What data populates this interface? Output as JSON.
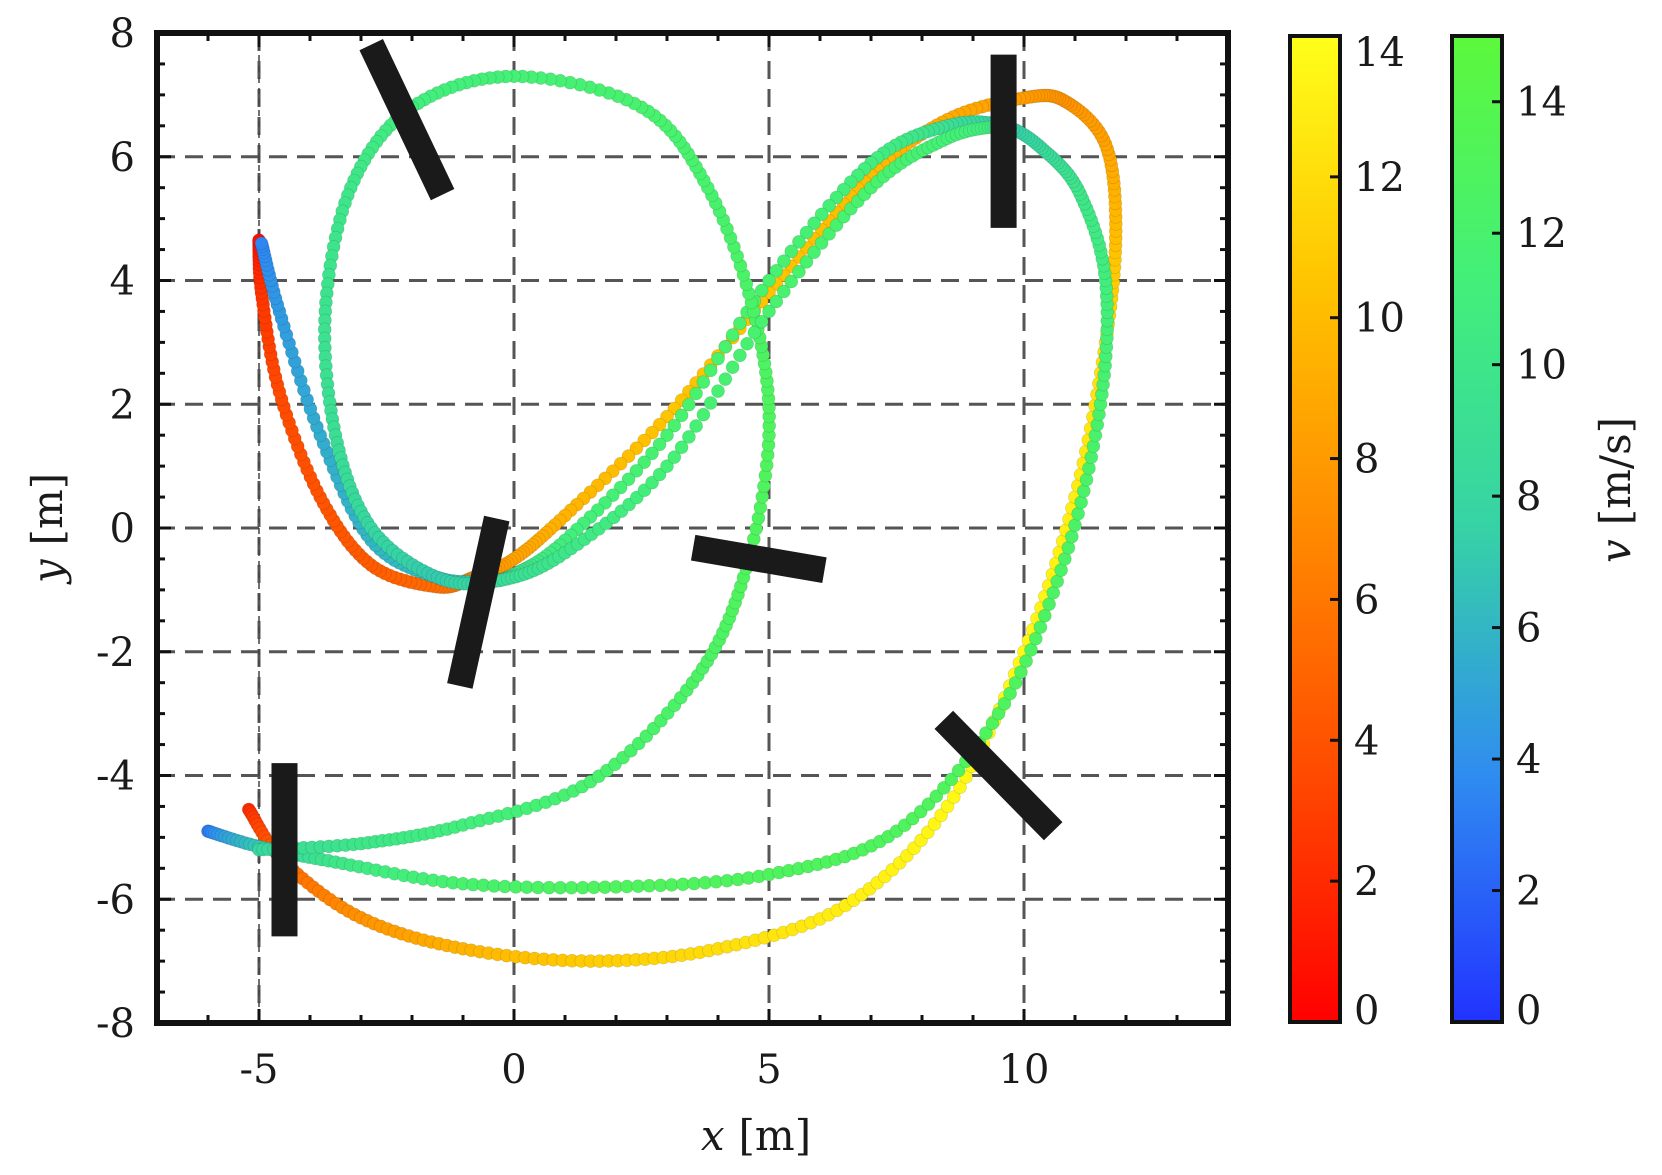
{
  "chart_data": {
    "type": "scatter",
    "xlabel": {
      "var": "x",
      "unit": "[m]"
    },
    "ylabel": {
      "var": "y",
      "unit": "[m]"
    },
    "xlim": [
      -7,
      14
    ],
    "ylim": [
      -8,
      8
    ],
    "xticks": [
      "-5",
      "0",
      "5",
      "10"
    ],
    "yticks": [
      "8",
      "6",
      "4",
      "2",
      "0",
      "-2",
      "-4",
      "-6",
      "-8"
    ],
    "grid": true,
    "reference_line_x": -5,
    "colorbars": [
      {
        "name": "colorbar-red-yellow",
        "range": [
          0,
          14
        ],
        "ticks": [
          "0",
          "2",
          "4",
          "6",
          "8",
          "10",
          "12",
          "14"
        ],
        "colors": [
          "#ff0000",
          "#ff4a00",
          "#ff8a00",
          "#ffc400",
          "#ffff1a"
        ],
        "label": ""
      },
      {
        "name": "colorbar-blue-green",
        "range": [
          0,
          15
        ],
        "ticks": [
          "0",
          "2",
          "4",
          "6",
          "8",
          "10",
          "12",
          "14"
        ],
        "colors": [
          "#2233ff",
          "#2f8cf0",
          "#36d2a6",
          "#43ef7a",
          "#5cf83c"
        ],
        "label": {
          "var": "v",
          "unit": "[m/s]"
        }
      }
    ],
    "series": [
      {
        "colormap": "red-yellow",
        "points": [
          [
            -5.2,
            -4.55,
            2
          ],
          [
            -4.5,
            -5.4,
            5
          ],
          [
            -3,
            -6.3,
            7.5
          ],
          [
            -1,
            -6.8,
            9.5
          ],
          [
            1.5,
            -7.0,
            11
          ],
          [
            4,
            -6.8,
            12
          ],
          [
            6.5,
            -6.1,
            13
          ],
          [
            8.5,
            -4.5,
            13.5
          ],
          [
            10,
            -2.0,
            13.5
          ],
          [
            11,
            0.5,
            13
          ],
          [
            11.6,
            3.0,
            12
          ],
          [
            11.8,
            4.8,
            10
          ],
          [
            11.6,
            6.2,
            8.5
          ],
          [
            10.8,
            6.9,
            7.5
          ],
          [
            10,
            6.95,
            8
          ],
          [
            8.5,
            6.6,
            9
          ],
          [
            7,
            5.7,
            10
          ],
          [
            5,
            3.8,
            10.5
          ],
          [
            3,
            1.8,
            10.5
          ],
          [
            1,
            0.2,
            9.5
          ],
          [
            0,
            -0.5,
            8.5
          ],
          [
            -0.8,
            -0.8,
            7
          ],
          [
            -1.5,
            -0.95,
            5.5
          ],
          [
            -2.8,
            -0.6,
            4.5
          ],
          [
            -3.8,
            0.5,
            4
          ],
          [
            -4.6,
            2.2,
            3.5
          ],
          [
            -4.95,
            3.8,
            2.5
          ],
          [
            -5,
            4.65,
            0.5
          ]
        ]
      },
      {
        "colormap": "blue-green",
        "points": [
          [
            -6,
            -4.9,
            3
          ],
          [
            -5,
            -5.15,
            7
          ],
          [
            -3.5,
            -5.4,
            10
          ],
          [
            -1,
            -5.75,
            12
          ],
          [
            2,
            -5.8,
            13
          ],
          [
            5,
            -5.6,
            13
          ],
          [
            7.5,
            -4.9,
            13
          ],
          [
            9.5,
            -3.0,
            13
          ],
          [
            10.8,
            -0.5,
            12.5
          ],
          [
            11.5,
            2.0,
            12
          ],
          [
            11.6,
            4.0,
            11
          ],
          [
            11.1,
            5.4,
            10
          ],
          [
            10.4,
            6.1,
            8.5
          ],
          [
            9.6,
            6.5,
            7
          ],
          [
            8.5,
            6.5,
            9
          ],
          [
            7,
            5.9,
            11
          ],
          [
            5,
            4.0,
            12
          ],
          [
            3,
            1.5,
            12
          ],
          [
            1,
            -0.2,
            11
          ],
          [
            0,
            -0.75,
            9.5
          ],
          [
            -0.5,
            -0.85,
            7.5
          ],
          [
            -1.5,
            -0.8,
            6.5
          ],
          [
            -2.8,
            -0.2,
            6
          ],
          [
            -3.8,
            1.5,
            5.5
          ],
          [
            -4.6,
            3.5,
            4.5
          ],
          [
            -4.95,
            4.6,
            3.5
          ]
        ]
      },
      {
        "colormap": "blue-green",
        "points": [
          [
            -5,
            -5.2,
            8
          ],
          [
            -3,
            -5.1,
            10
          ],
          [
            -1,
            -4.8,
            11
          ],
          [
            1.5,
            -4.1,
            12
          ],
          [
            3.5,
            -2.5,
            12.5
          ],
          [
            4.5,
            -0.8,
            13
          ],
          [
            5,
            1.5,
            13
          ],
          [
            4.7,
            3.5,
            12.5
          ],
          [
            3.8,
            5.5,
            12
          ],
          [
            2.5,
            6.8,
            12
          ],
          [
            0,
            7.3,
            11.5
          ],
          [
            -2,
            6.8,
            11
          ],
          [
            -3.2,
            5.5,
            10
          ],
          [
            -3.7,
            3.5,
            9.5
          ],
          [
            -3.5,
            1.5,
            9
          ],
          [
            -2.8,
            0,
            8
          ],
          [
            -1.5,
            -0.8,
            7
          ],
          [
            -0.3,
            -0.85,
            8.5
          ],
          [
            1,
            -0.4,
            10
          ],
          [
            3,
            1.0,
            11.5
          ],
          [
            5,
            3.5,
            12
          ],
          [
            7,
            5.5,
            12
          ],
          [
            8.5,
            6.3,
            11.5
          ],
          [
            9.5,
            6.5,
            10.5
          ]
        ]
      }
    ],
    "bars": [
      {
        "x": -4.5,
        "y": -5.2,
        "angle_deg": 90,
        "length": 2.8
      },
      {
        "x": -0.7,
        "y": -1.2,
        "angle_deg": 75,
        "length": 2.8
      },
      {
        "x": -2.1,
        "y": 6.6,
        "angle_deg": 120,
        "length": 2.8
      },
      {
        "x": 9.6,
        "y": 6.25,
        "angle_deg": 90,
        "length": 2.8
      },
      {
        "x": 4.8,
        "y": -0.5,
        "angle_deg": -8,
        "length": 2.6
      },
      {
        "x": 9.5,
        "y": -4.0,
        "angle_deg": -40,
        "length": 2.8
      }
    ]
  }
}
